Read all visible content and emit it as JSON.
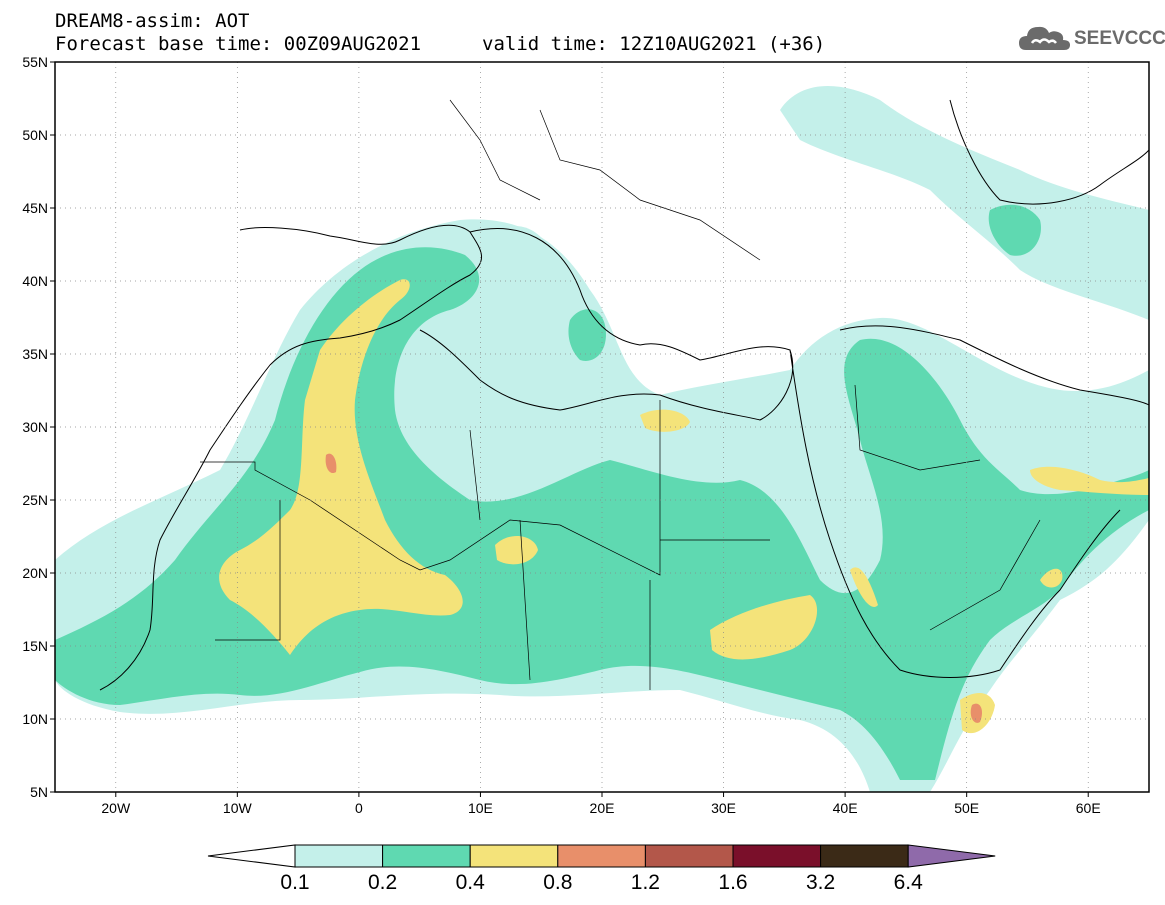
{
  "header": {
    "line1": "DREAM8-assim: AOT",
    "line2": "Forecast base time: 00Z09AUG2021",
    "line3": "valid time: 12Z10AUG2021 (+36)"
  },
  "logo": {
    "text": "SEEVCCC",
    "icon": "cloud-icon"
  },
  "map": {
    "lon_range": [
      -25,
      65
    ],
    "lat_range": [
      5,
      55
    ],
    "lat_ticks": [
      {
        "value": 55,
        "label": "55N"
      },
      {
        "value": 50,
        "label": "50N"
      },
      {
        "value": 45,
        "label": "45N"
      },
      {
        "value": 40,
        "label": "40N"
      },
      {
        "value": 35,
        "label": "35N"
      },
      {
        "value": 30,
        "label": "30N"
      },
      {
        "value": 25,
        "label": "25N"
      },
      {
        "value": 20,
        "label": "20N"
      },
      {
        "value": 15,
        "label": "15N"
      },
      {
        "value": 10,
        "label": "10N"
      },
      {
        "value": 5,
        "label": "5N"
      }
    ],
    "lon_ticks": [
      {
        "value": -20,
        "label": "20W"
      },
      {
        "value": -10,
        "label": "10W"
      },
      {
        "value": 0,
        "label": "0"
      },
      {
        "value": 10,
        "label": "10E"
      },
      {
        "value": 20,
        "label": "20E"
      },
      {
        "value": 30,
        "label": "30E"
      },
      {
        "value": 40,
        "label": "40E"
      },
      {
        "value": 50,
        "label": "50E"
      },
      {
        "value": 60,
        "label": "60E"
      }
    ],
    "grid": true
  },
  "colorbar": {
    "levels": [
      "0.1",
      "0.2",
      "0.4",
      "0.8",
      "1.2",
      "1.6",
      "3.2",
      "6.4"
    ],
    "colors": [
      "#ffffff",
      "#c4f0ea",
      "#5fd9b1",
      "#f4e37a",
      "#e88f6a",
      "#b3574a",
      "#7a0f2a",
      "#3b2a17",
      "#8f6aaa"
    ]
  }
}
